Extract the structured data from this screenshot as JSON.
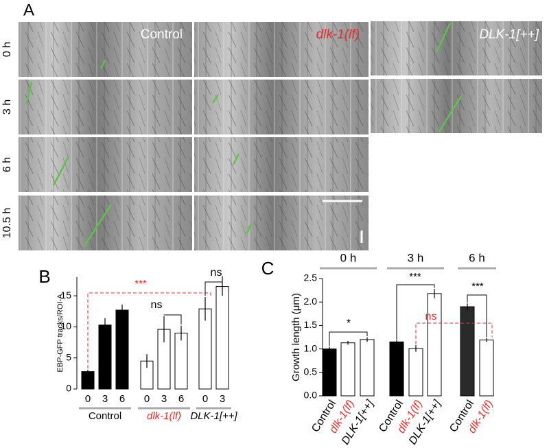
{
  "panel_a": {
    "panel_label": "A",
    "rows": [
      "0 h",
      "3 h",
      "6 h",
      "10.5 h"
    ],
    "columns": [
      {
        "label": "Control",
        "color": "#ffffff",
        "italic": false
      },
      {
        "label": "dlk-1(lf)",
        "color": "#e0302f",
        "italic": true
      },
      {
        "label": "DLK-1[++]",
        "color": "#ffffff",
        "italic": true
      }
    ]
  },
  "chart_data": [
    {
      "type": "bar",
      "panel_label": "B",
      "ylabel": "EBP-GFP tracks/ROI-A",
      "ylim": [
        0,
        18
      ],
      "yticks": [
        0,
        5,
        10,
        15
      ],
      "groups": [
        {
          "name": "Control",
          "label_color": "#000000",
          "italic": false,
          "color": "#000000",
          "categories": [
            "0",
            "3",
            "6"
          ],
          "values": [
            2.8,
            10.3,
            12.7
          ],
          "errors": [
            0.3,
            1.1,
            0.9
          ]
        },
        {
          "name": "dlk-1(lf)",
          "label_color": "#e0302f",
          "italic": true,
          "color": "#ffffff",
          "categories": [
            "0",
            "3",
            "6"
          ],
          "values": [
            4.5,
            9.6,
            9.0
          ],
          "errors": [
            1.1,
            2.1,
            1.2
          ]
        },
        {
          "name": "DLK-1[++]",
          "label_color": "#000000",
          "italic": true,
          "color": "#ffffff",
          "categories": [
            "0",
            "3"
          ],
          "values": [
            12.9,
            16.5
          ],
          "errors": [
            1.9,
            1.5
          ]
        }
      ],
      "annotations": [
        {
          "text": "***",
          "color": "#e0302f"
        },
        {
          "text": "ns",
          "color": "#000000"
        },
        {
          "text": "ns",
          "color": "#000000"
        }
      ]
    },
    {
      "type": "bar",
      "panel_label": "C",
      "ylabel": "Growth length (μm)",
      "ylim": [
        0,
        2.5
      ],
      "yticks": [
        {
          "value": 0,
          "label": "0.0"
        },
        0.5,
        {
          "value": 1,
          "label": "1.0"
        },
        1.5,
        {
          "value": 2,
          "label": "2.0"
        },
        2.5
      ],
      "groups": [
        {
          "name": "0 h",
          "categories": [
            "Control",
            "dlk-1(lf)",
            "DLK-1[++]"
          ],
          "colors": [
            "#000000",
            "#ffffff",
            "#ffffff"
          ],
          "label_colors": [
            "#000000",
            "#e0302f",
            "#000000"
          ],
          "label_italic": [
            false,
            true,
            true
          ],
          "values": [
            1.0,
            1.13,
            1.2
          ],
          "errors": [
            0.04,
            0.04,
            0.05
          ]
        },
        {
          "name": "3 h",
          "categories": [
            "Control",
            "dlk-1(lf)",
            "DLK-1[++]"
          ],
          "colors": [
            "#000000",
            "#ffffff",
            "#ffffff"
          ],
          "label_colors": [
            "#000000",
            "#e0302f",
            "#000000"
          ],
          "label_italic": [
            false,
            true,
            true
          ],
          "values": [
            1.15,
            1.01,
            2.18
          ],
          "errors": [
            0.04,
            0.07,
            0.1
          ]
        },
        {
          "name": "6 h",
          "categories": [
            "Control",
            "dlk-1(lf)"
          ],
          "colors": [
            "#2a2a2a",
            "#ffffff"
          ],
          "label_colors": [
            "#000000",
            "#e0302f"
          ],
          "label_italic": [
            false,
            true
          ],
          "values": [
            1.9,
            1.19
          ],
          "errors": [
            0.07,
            0.04
          ]
        }
      ],
      "annotations": [
        {
          "text": "*",
          "color": "#000000"
        },
        {
          "text": "***",
          "color": "#000000"
        },
        {
          "text": "ns",
          "color": "#e0302f"
        },
        {
          "text": "***",
          "color": "#000000"
        }
      ]
    }
  ]
}
